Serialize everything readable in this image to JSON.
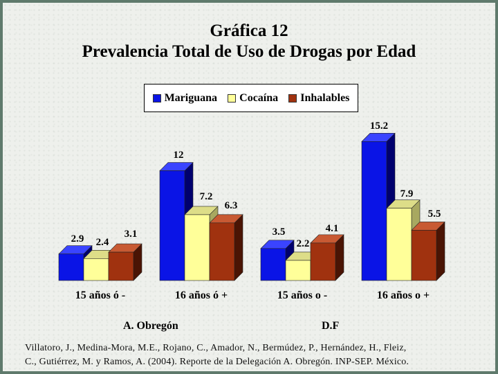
{
  "title_line1": "Gráfica 12",
  "title_line2": "Prevalencia Total de Uso de Drogas por Edad",
  "chart_data": {
    "type": "bar",
    "title": "Gráfica 12 Prevalencia Total de Uso de Drogas por Edad",
    "categories": [
      "15 años ó -",
      "16 años ó +",
      "15 años o -",
      "16 años o +"
    ],
    "groups": [
      "A. Obregón",
      "D.F"
    ],
    "series": [
      {
        "name": "Mariguana",
        "color": "#0a14e6",
        "values": [
          2.9,
          12,
          3.5,
          15.2
        ],
        "labels": [
          "2.9",
          "12",
          "3.5",
          "15.2"
        ]
      },
      {
        "name": "Cocaína",
        "color": "#ffff99",
        "values": [
          2.4,
          7.2,
          2.2,
          7.9
        ],
        "labels": [
          "2.4",
          "7.2",
          "2.2",
          "7.9"
        ]
      },
      {
        "name": "Inhalables",
        "color": "#a0320f",
        "values": [
          3.1,
          6.3,
          4.1,
          5.5
        ],
        "labels": [
          "3.1",
          "6.3",
          "4.1",
          "5.5"
        ]
      }
    ],
    "legend_position": "top-center",
    "grid": false
  },
  "sections": [
    "A. Obregón",
    "D.F"
  ],
  "citation_line1": "Villatoro, J., Medina-Mora, M.E., Rojano, C., Amador, N., Bermúdez, P., Hernández, H., Fleiz,",
  "citation_line2": "C., Gutiérrez, M. y Ramos, A. (2004). Reporte de la Delegación A. Obregón. INP-SEP. México."
}
